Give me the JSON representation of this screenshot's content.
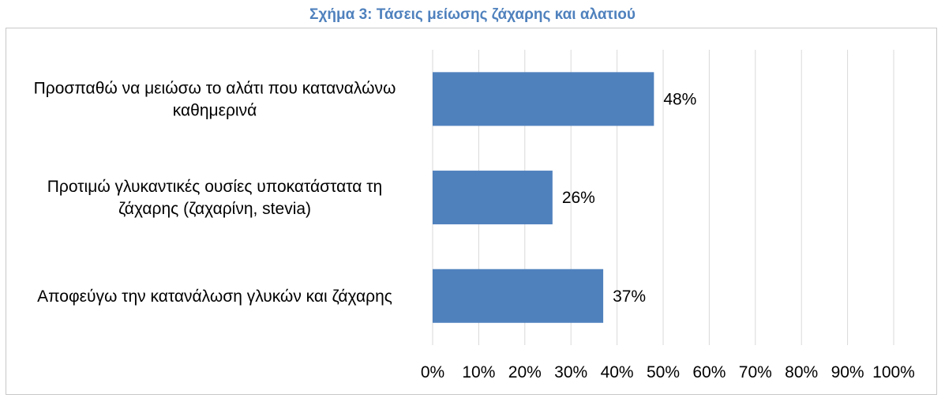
{
  "chart_data": {
    "type": "bar",
    "orientation": "horizontal",
    "title": "Σχήμα 3: Τάσεις μείωσης ζάχαρης και αλατιού",
    "categories": [
      [
        "Προσπαθώ να μειώσω το αλάτι που καταναλώνω",
        "καθημερινά"
      ],
      [
        "Προτιμώ γλυκαντικές ουσίες υποκατάστατα τη",
        "ζάχαρης (ζαχαρίνη, stevia)"
      ],
      [
        "Αποφεύγω την κατανάλωση γλυκών και ζάχαρης"
      ]
    ],
    "values": [
      48,
      26,
      37
    ],
    "data_labels": [
      "48%",
      "26%",
      "37%"
    ],
    "xlim": [
      0,
      100
    ],
    "ticks": [
      0,
      10,
      20,
      30,
      40,
      50,
      60,
      70,
      80,
      90,
      100
    ],
    "tick_labels": [
      "0%",
      "10%",
      "20%",
      "30%",
      "40%",
      "50%",
      "60%",
      "70%",
      "80%",
      "90%",
      "100%"
    ],
    "grid": true,
    "legend": "none",
    "colors": {
      "bar": "#4f81bd",
      "grid": "#d9d9d9",
      "title": "#4f81bd"
    }
  }
}
